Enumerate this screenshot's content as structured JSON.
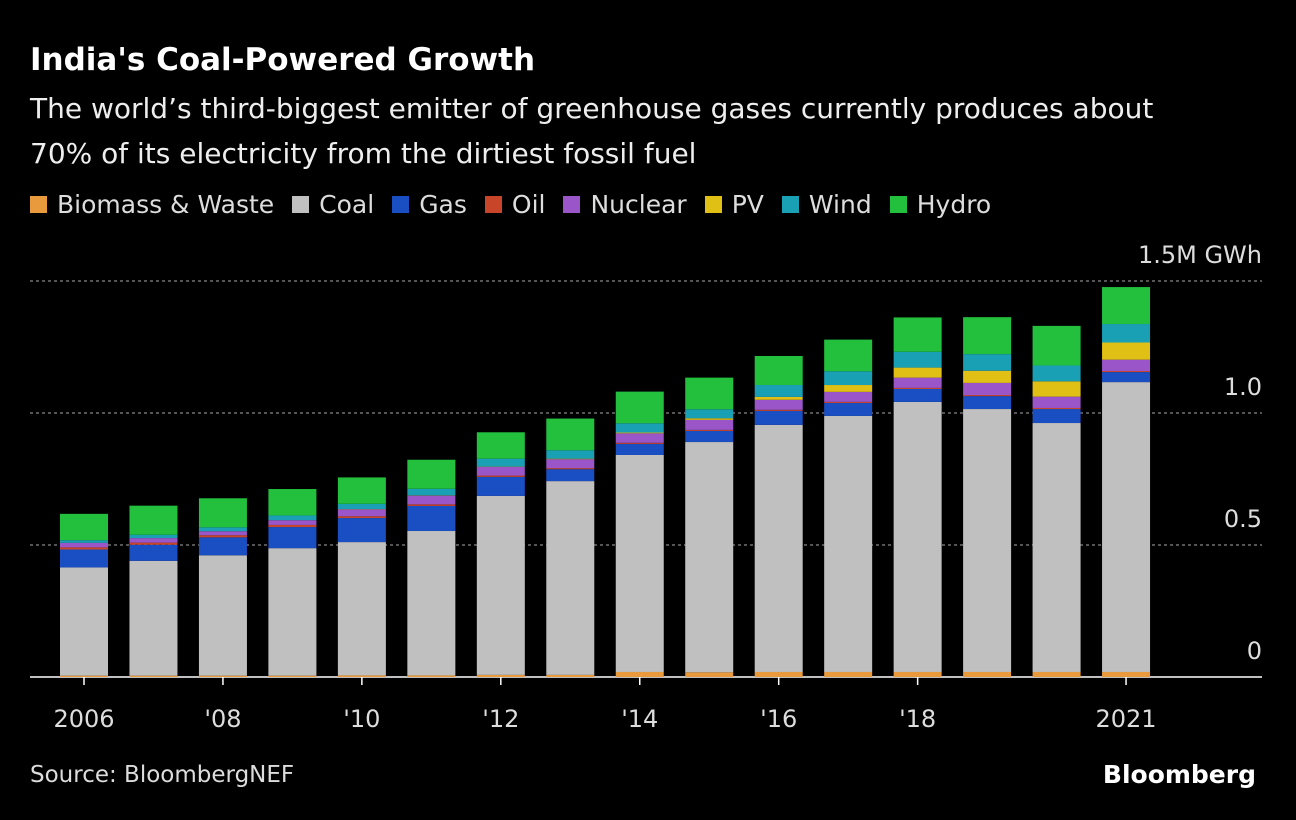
{
  "chart_data": {
    "type": "stacked_bar",
    "title": "India's Coal-Powered Growth",
    "subtitle": "The world’s third-biggest emitter of greenhouse gases currently produces about 70% of its electricity from the dirtiest fossil fuel",
    "source": "Source: BloombergNEF",
    "brand": "Bloomberg",
    "categories": [
      "2006",
      null,
      "'08",
      null,
      "'10",
      null,
      "'12",
      null,
      "'14",
      null,
      "'16",
      null,
      "'18",
      null,
      null,
      "2021"
    ],
    "ylim": [
      0,
      1.5
    ],
    "yticks": [
      0,
      0.5,
      {
        "value": 1,
        "label": "1.0"
      },
      {
        "value": 1.5,
        "label": "1.5M GWh"
      }
    ],
    "grid": true,
    "series": [
      {
        "name": "Biomass & Waste",
        "color": "#e89a3c",
        "values": [
          0.005,
          0.005,
          0.005,
          0.005,
          0.006,
          0.006,
          0.008,
          0.008,
          0.019,
          0.018,
          0.019,
          0.019,
          0.019,
          0.019,
          0.019,
          0.019
        ]
      },
      {
        "name": "Coal",
        "color": "#c0c0c0",
        "values": [
          0.41,
          0.435,
          0.456,
          0.483,
          0.505,
          0.547,
          0.678,
          0.734,
          0.822,
          0.872,
          0.936,
          0.97,
          1.023,
          0.996,
          0.943,
          1.098
        ]
      },
      {
        "name": "Gas",
        "color": "#1a4fc4",
        "values": [
          0.068,
          0.061,
          0.068,
          0.08,
          0.091,
          0.095,
          0.072,
          0.045,
          0.042,
          0.042,
          0.053,
          0.049,
          0.049,
          0.049,
          0.053,
          0.038
        ]
      },
      {
        "name": "Oil",
        "color": "#c8452a",
        "values": [
          0.008,
          0.008,
          0.008,
          0.008,
          0.007,
          0.006,
          0.005,
          0.004,
          0.004,
          0.004,
          0.004,
          0.004,
          0.004,
          0.004,
          0.004,
          0.004
        ]
      },
      {
        "name": "Nuclear",
        "color": "#9a55c8",
        "values": [
          0.017,
          0.017,
          0.015,
          0.018,
          0.026,
          0.033,
          0.033,
          0.034,
          0.036,
          0.038,
          0.038,
          0.038,
          0.039,
          0.046,
          0.043,
          0.043
        ]
      },
      {
        "name": "PV",
        "color": "#e0c014",
        "values": [
          0,
          0,
          0,
          0,
          0.001,
          0.001,
          0.001,
          0.002,
          0.003,
          0.006,
          0.011,
          0.026,
          0.038,
          0.046,
          0.058,
          0.065
        ]
      },
      {
        "name": "Wind",
        "color": "#1aa0b4",
        "values": [
          0.01,
          0.013,
          0.015,
          0.018,
          0.02,
          0.025,
          0.03,
          0.032,
          0.035,
          0.034,
          0.045,
          0.052,
          0.06,
          0.063,
          0.06,
          0.07
        ]
      },
      {
        "name": "Hydro",
        "color": "#22c03c",
        "values": [
          0.1,
          0.11,
          0.11,
          0.1,
          0.1,
          0.11,
          0.1,
          0.12,
          0.12,
          0.12,
          0.11,
          0.12,
          0.13,
          0.14,
          0.15,
          0.14
        ]
      }
    ]
  }
}
